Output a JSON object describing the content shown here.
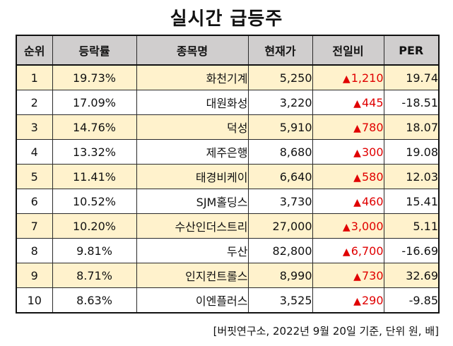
{
  "title": "실시간 급등주",
  "headers": [
    "순위",
    "등락률",
    "종목명",
    "현재가",
    "전일비",
    "PER"
  ],
  "rows": [
    {
      "rank": "1",
      "rate": "19.73%",
      "name": "화천기계",
      "price": "5,250",
      "change": "1,210",
      "per": "19.74"
    },
    {
      "rank": "2",
      "rate": "17.09%",
      "name": "대원화성",
      "price": "3,220",
      "change": "445",
      "per": "-18.51"
    },
    {
      "rank": "3",
      "rate": "14.76%",
      "name": "덕성",
      "price": "5,910",
      "change": "780",
      "per": "18.07"
    },
    {
      "rank": "4",
      "rate": "13.32%",
      "name": "제주은행",
      "price": "8,680",
      "change": "300",
      "per": "19.08"
    },
    {
      "rank": "5",
      "rate": "11.41%",
      "name": "태경비케이",
      "price": "6,640",
      "change": "580",
      "per": "12.03"
    },
    {
      "rank": "6",
      "rate": "10.52%",
      "name": "SJM홀딩스",
      "price": "3,730",
      "change": "460",
      "per": "15.41"
    },
    {
      "rank": "7",
      "rate": "10.20%",
      "name": "수산인더스트리",
      "price": "27,000",
      "change": "3,000",
      "per": "5.11"
    },
    {
      "rank": "8",
      "rate": "9.81%",
      "name": "두산",
      "price": "82,800",
      "change": "6,700",
      "per": "-16.69"
    },
    {
      "rank": "9",
      "rate": "8.71%",
      "name": "인지컨트롤스",
      "price": "8,990",
      "change": "730",
      "per": "32.69"
    },
    {
      "rank": "10",
      "rate": "8.63%",
      "name": "이엔플러스",
      "price": "3,525",
      "change": "290",
      "per": "-9.85"
    }
  ],
  "up_symbol": "▲",
  "source": "[버핏연구소, 2022년 9월 20일 기준, 단위 원, 배]",
  "colors": {
    "header_bg": "#d0cece",
    "stripe_bg": "#fff2cc",
    "up": "#e00000"
  }
}
